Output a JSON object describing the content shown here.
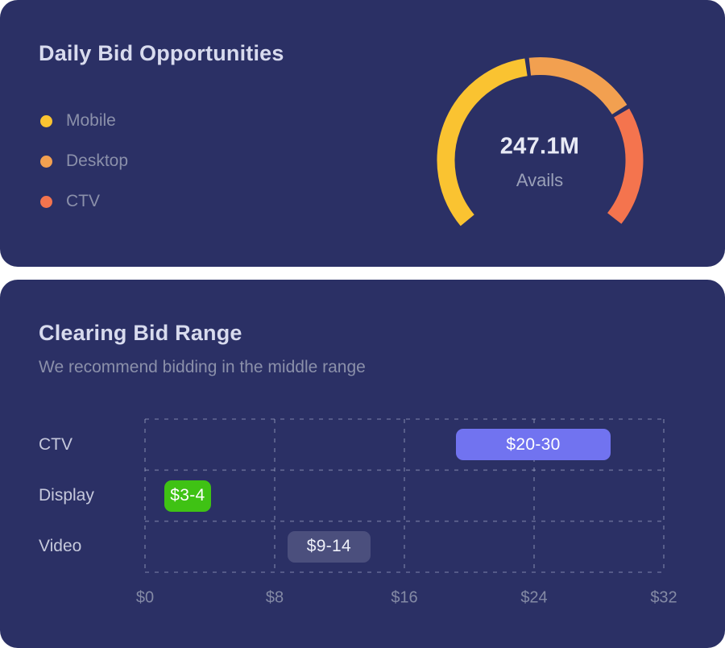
{
  "page": {
    "background": "#FFFFFF",
    "card_background": "#2B3065"
  },
  "cards": {
    "daily_bid": {
      "title": "Daily Bid Opportunities"
    },
    "clearing_bid": {
      "title": "Clearing Bid Range",
      "subtitle": "We recommend bidding in the middle range"
    }
  },
  "chart_data": [
    {
      "type": "pie",
      "variant": "gauge-donut",
      "title": "Daily Bid Opportunities",
      "center_value": "247.1M",
      "center_label": "Avails",
      "arc": {
        "start_angle_deg": 219.5,
        "end_angle_deg": -38,
        "gap_between_segments_deg": 2.5,
        "open_at": "bottom"
      },
      "legend_position": "left",
      "segments": [
        {
          "name": "Mobile",
          "color": "#FAC331",
          "share_pct": 48,
          "start_deg": 219.5,
          "end_deg": 98.6
        },
        {
          "name": "Desktop",
          "color": "#F2A050",
          "share_pct": 25,
          "start_deg": 96.2,
          "end_deg": 32.6
        },
        {
          "name": "CTV",
          "color": "#F4744E",
          "share_pct": 27,
          "start_deg": 30.2,
          "end_deg": -38
        }
      ]
    },
    {
      "type": "bar",
      "orientation": "horizontal",
      "title": "Clearing Bid Range",
      "subtitle": "We recommend bidding in the middle range",
      "grid": {
        "visible": true,
        "style": "dashed"
      },
      "x_axis": {
        "min": 0,
        "max": 32,
        "tick_values": [
          0,
          8,
          16,
          24,
          32
        ],
        "tick_labels": [
          "$0",
          "$8",
          "$16",
          "$24",
          "$32"
        ]
      },
      "categories": [
        "CTV",
        "Display",
        "Video"
      ],
      "bars": [
        {
          "category": "CTV",
          "label": "$20-30",
          "value_range": [
            20,
            30
          ],
          "draw_range": [
            19.2,
            28.7
          ],
          "color": "#7173F0",
          "label_color": "#FFFFFF"
        },
        {
          "category": "Display",
          "label": "$3-4",
          "value_range": [
            3,
            4
          ],
          "draw_range": [
            1.2,
            4.05
          ],
          "color": "#3FC214",
          "label_color": "#FFFFFF"
        },
        {
          "category": "Video",
          "label": "$9-14",
          "value_range": [
            9,
            14
          ],
          "draw_range": [
            8.8,
            13.9
          ],
          "color": "#4B4F7D",
          "label_color": "#EDEFF8"
        }
      ]
    }
  ]
}
